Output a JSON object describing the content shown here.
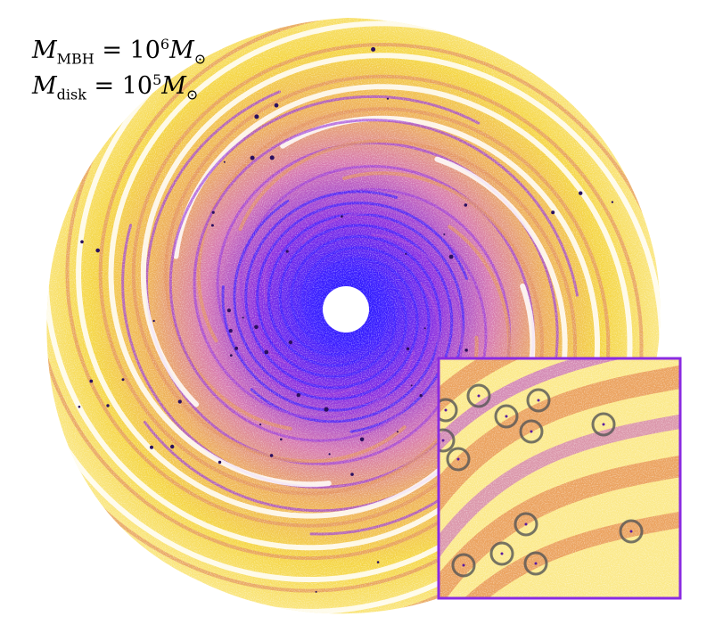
{
  "annotations": {
    "mbh_symbol": "M",
    "mbh_subscript": "MBH",
    "mbh_equals": " = 10",
    "mbh_exponent": "6",
    "mbh_unit": "M",
    "mbh_unit_subscript": "⊙",
    "disk_symbol": "M",
    "disk_subscript": "disk",
    "disk_equals": " = 10",
    "disk_exponent": "5",
    "disk_unit": "M",
    "disk_unit_subscript": "⊙"
  },
  "colors": {
    "outer": "#f5d645",
    "mid": "#e58a4f",
    "inner": "#9b2fd6",
    "core": "#3a1cff",
    "inset_border": "#8a2be2",
    "circle": "#555555"
  },
  "inset": {
    "circled_fragments": 12
  }
}
